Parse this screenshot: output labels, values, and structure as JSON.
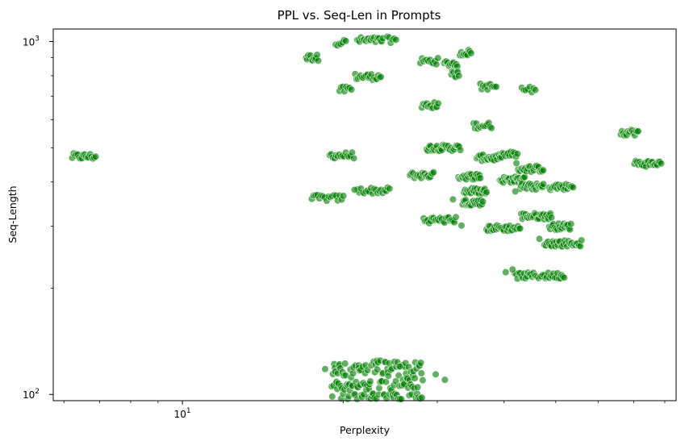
{
  "chart_data": {
    "type": "scatter",
    "title": "PPL vs. Seq-Len in Prompts",
    "xlabel": "Perplexity",
    "ylabel": "Seq-Length",
    "xscale": "log",
    "yscale": "log",
    "xlim": [
      5.73,
      84
    ],
    "ylim": [
      96,
      1085
    ],
    "x_ticks": [
      {
        "value": 10,
        "base": "10",
        "exp": "1"
      }
    ],
    "y_ticks": [
      {
        "value": 100,
        "base": "10",
        "exp": "2"
      },
      {
        "value": 1000,
        "base": "10",
        "exp": "3"
      }
    ],
    "grid": false,
    "legend": "none",
    "marker_color": "#008000",
    "marker_alpha": 0.62,
    "marker_edge_color": "#ffffff",
    "clusters": [
      {
        "x": [
          6.2,
          6.9
        ],
        "y": 472,
        "count": 18
      },
      {
        "x": [
          17.0,
          18.0
        ],
        "y": 900,
        "count": 12
      },
      {
        "x": [
          19.3,
          20.3
        ],
        "y": 995,
        "count": 7
      },
      {
        "x": [
          21.2,
          23.8
        ],
        "y": 1008,
        "count": 22
      },
      {
        "x": [
          24.1,
          25.2
        ],
        "y": 1012,
        "count": 6
      },
      {
        "x": [
          21.0,
          23.6
        ],
        "y": 795,
        "count": 20
      },
      {
        "x": [
          19.6,
          20.8
        ],
        "y": 730,
        "count": 8
      },
      {
        "x": [
          18.8,
          21.0
        ],
        "y": 476,
        "count": 16
      },
      {
        "x": [
          17.4,
          20.1
        ],
        "y": 360,
        "count": 18
      },
      {
        "x": [
          21.2,
          24.5
        ],
        "y": 378,
        "count": 20
      },
      {
        "x": [
          27.8,
          30.2
        ],
        "y": 880,
        "count": 12
      },
      {
        "x": [
          30.8,
          32.8
        ],
        "y": 866,
        "count": 12
      },
      {
        "x": [
          31.8,
          33.0
        ],
        "y": 808,
        "count": 8
      },
      {
        "x": [
          33.0,
          34.8
        ],
        "y": 930,
        "count": 10
      },
      {
        "x": [
          28.0,
          30.2
        ],
        "y": 660,
        "count": 14
      },
      {
        "x": [
          36.0,
          38.8
        ],
        "y": 745,
        "count": 12
      },
      {
        "x": [
          43.0,
          46.0
        ],
        "y": 730,
        "count": 8
      },
      {
        "x": [
          35.0,
          38.0
        ],
        "y": 578,
        "count": 14
      },
      {
        "x": [
          28.6,
          33.2
        ],
        "y": 500,
        "count": 34
      },
      {
        "x": [
          35.5,
          39.8
        ],
        "y": 468,
        "count": 26
      },
      {
        "x": [
          39.2,
          42.5
        ],
        "y": 478,
        "count": 14
      },
      {
        "x": [
          26.6,
          29.6
        ],
        "y": 418,
        "count": 22
      },
      {
        "x": [
          32.8,
          36.2
        ],
        "y": 415,
        "count": 26
      },
      {
        "x": [
          33.6,
          37.2
        ],
        "y": 377,
        "count": 24
      },
      {
        "x": [
          33.4,
          36.6
        ],
        "y": 350,
        "count": 22
      },
      {
        "x": [
          39.2,
          43.8
        ],
        "y": 406,
        "count": 30
      },
      {
        "x": [
          42.4,
          47.5
        ],
        "y": 436,
        "count": 22
      },
      {
        "x": [
          42.8,
          47.5
        ],
        "y": 388,
        "count": 26
      },
      {
        "x": [
          48.5,
          54.0
        ],
        "y": 387,
        "count": 22
      },
      {
        "x": [
          28.2,
          32.6
        ],
        "y": 312,
        "count": 24
      },
      {
        "x": [
          37.0,
          43.0
        ],
        "y": 296,
        "count": 30
      },
      {
        "x": [
          43.0,
          49.2
        ],
        "y": 320,
        "count": 30
      },
      {
        "x": [
          48.5,
          53.5
        ],
        "y": 299,
        "count": 22
      },
      {
        "x": [
          47.5,
          56.0
        ],
        "y": 268,
        "count": 32
      },
      {
        "x": [
          41.8,
          52.0
        ],
        "y": 217,
        "count": 38
      },
      {
        "x": [
          66.0,
          71.5
        ],
        "y": 553,
        "count": 16
      },
      {
        "x": [
          70.0,
          79.0
        ],
        "y": 451,
        "count": 22
      },
      {
        "x": [
          19.0,
          28.2
        ],
        "y": 110,
        "count": 150
      }
    ],
    "outliers": [
      {
        "x": 18.5,
        "y": 118
      },
      {
        "x": 29.8,
        "y": 114
      },
      {
        "x": 31.0,
        "y": 110
      },
      {
        "x": 25.5,
        "y": 120
      },
      {
        "x": 32.1,
        "y": 357
      },
      {
        "x": 33.3,
        "y": 301
      },
      {
        "x": 40.3,
        "y": 222
      },
      {
        "x": 41.5,
        "y": 226
      },
      {
        "x": 42.0,
        "y": 376
      },
      {
        "x": 42.2,
        "y": 452
      },
      {
        "x": 46.6,
        "y": 276
      },
      {
        "x": 21.0,
        "y": 380
      }
    ]
  }
}
